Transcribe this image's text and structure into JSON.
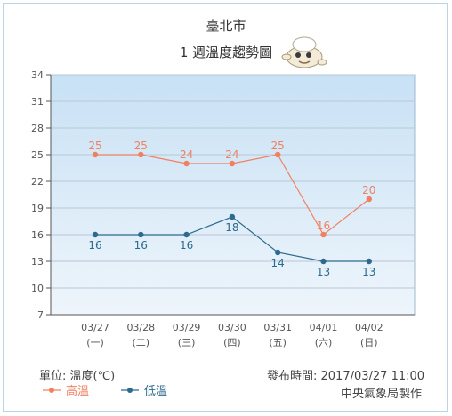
{
  "header": {
    "city": "臺北市",
    "subtitle": "1 週溫度趨勢圖"
  },
  "footer": {
    "unit_label": "單位: 溫度(℃)",
    "published": "發布時間: 2017/03/27 11:00",
    "producer": "中央氣象局製作"
  },
  "colors": {
    "high": "#f08060",
    "low": "#2c6a8e",
    "plot_top": "#c8e1f5",
    "plot_bottom": "#eef5fb",
    "grid": "#b8c8d4",
    "axis": "#555555"
  },
  "chart_data": {
    "type": "line",
    "title": "1 週溫度趨勢圖",
    "ylabel": "溫度(℃)",
    "categories": [
      "03/27",
      "03/28",
      "03/29",
      "03/30",
      "03/31",
      "04/01",
      "04/02"
    ],
    "weekdays": [
      "(一)",
      "(二)",
      "(三)",
      "(四)",
      "(五)",
      "(六)",
      "(日)"
    ],
    "yticks": [
      7,
      10,
      13,
      16,
      19,
      22,
      25,
      28,
      31,
      34
    ],
    "ylim": [
      7,
      34
    ],
    "grid": true,
    "legend_position": "bottom-left",
    "series": [
      {
        "name": "高溫",
        "values": [
          25,
          25,
          24,
          24,
          25,
          16,
          20
        ]
      },
      {
        "name": "低溫",
        "values": [
          16,
          16,
          16,
          18,
          14,
          13,
          13
        ]
      }
    ]
  }
}
